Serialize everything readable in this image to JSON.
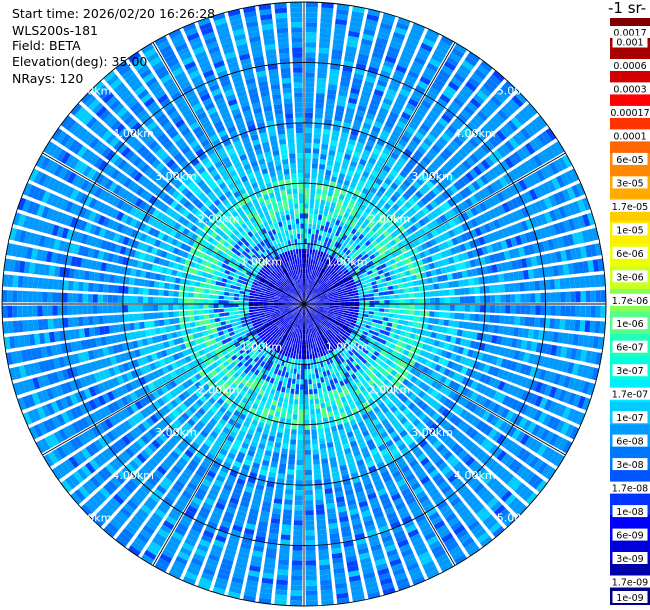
{
  "header": {
    "start_time": "Start time: 2026/02/20 16:26:28",
    "instrument": "WLS200s-181",
    "field": "Field: BETA",
    "elevation": "Elevation(deg): 35.00",
    "nrays": "NRays: 120"
  },
  "chart_data": {
    "type": "heatmap",
    "projection": "polar-ppi",
    "max_range_km": 5.0,
    "ray_count": 120,
    "range_rings_km": [
      1,
      2,
      3,
      4,
      5
    ],
    "ring_labels": [
      "1.00km",
      "2.00km",
      "3.00km",
      "4.00km",
      "5.00km"
    ],
    "spokes_deg_step": 30,
    "colorbar": {
      "title": "-1 sr-",
      "ticks": [
        "0.0017",
        "0.001",
        "0.0006",
        "0.0003",
        "0.00017",
        "0.0001",
        "6e-05",
        "3e-05",
        "1.7e-05",
        "1e-05",
        "6e-06",
        "3e-06",
        "1.7e-06",
        "1e-06",
        "6e-07",
        "3e-07",
        "1.7e-07",
        "1e-07",
        "6e-08",
        "3e-08",
        "1.7e-08",
        "1e-08",
        "6e-09",
        "3e-09",
        "1.7e-09",
        "1e-09"
      ],
      "colors": [
        "#800000",
        "#a80000",
        "#d00000",
        "#ff0000",
        "#ff3300",
        "#ff6600",
        "#ff8800",
        "#ffaa00",
        "#ffcc00",
        "#ffee00",
        "#eeff00",
        "#ccff22",
        "#88ff55",
        "#55ff88",
        "#22ffbb",
        "#00ffdd",
        "#00eeff",
        "#00ccff",
        "#0099ff",
        "#0077ff",
        "#0055ff",
        "#0033ff",
        "#0000ff",
        "#0000dd",
        "#0000aa",
        "#000088"
      ]
    }
  }
}
